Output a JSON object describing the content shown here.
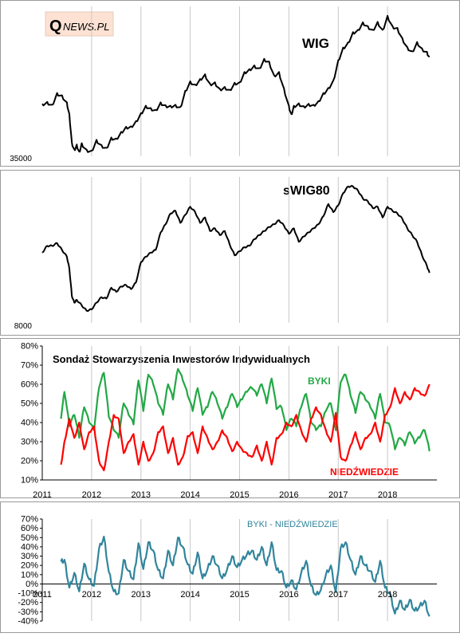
{
  "logo": {
    "text_q": "Q",
    "text_rest": "NEWS.PL"
  },
  "years": [
    "2011",
    "2012",
    "2013",
    "2014",
    "2015",
    "2016",
    "2017",
    "2018"
  ],
  "chart_data": [
    {
      "type": "line",
      "title": "WIG",
      "y_tick_labels": [
        "35000"
      ],
      "series": [
        {
          "color": "#000000",
          "x": [
            2011.0,
            2011.1,
            2011.2,
            2011.3,
            2011.4,
            2011.5,
            2011.55,
            2011.6,
            2011.65,
            2011.7,
            2011.75,
            2011.8,
            2011.9,
            2012.0,
            2012.1,
            2012.2,
            2012.3,
            2012.4,
            2012.5,
            2012.6,
            2012.7,
            2012.8,
            2012.9,
            2013.0,
            2013.1,
            2013.2,
            2013.3,
            2013.4,
            2013.5,
            2013.6,
            2013.7,
            2013.8,
            2013.9,
            2014.0,
            2014.1,
            2014.2,
            2014.3,
            2014.4,
            2014.5,
            2014.6,
            2014.7,
            2014.8,
            2014.9,
            2015.0,
            2015.1,
            2015.2,
            2015.3,
            2015.4,
            2015.5,
            2015.6,
            2015.7,
            2015.8,
            2015.9,
            2016.0,
            2016.05,
            2016.1,
            2016.2,
            2016.3,
            2016.4,
            2016.5,
            2016.6,
            2016.7,
            2016.8,
            2016.9,
            2017.0,
            2017.1,
            2017.2,
            2017.3,
            2017.4,
            2017.5,
            2017.6,
            2017.7,
            2017.8,
            2017.9,
            2018.0,
            2018.1,
            2018.2,
            2018.3,
            2018.4,
            2018.5,
            2018.6,
            2018.7,
            2018.8,
            2018.85
          ],
          "y": [
            45200,
            45600,
            45000,
            47500,
            47000,
            45500,
            43000,
            37000,
            35500,
            36500,
            35000,
            36800,
            35400,
            35200,
            37500,
            36400,
            35800,
            38000,
            37800,
            39200,
            40300,
            40400,
            41500,
            43200,
            44800,
            44300,
            43900,
            45500,
            44900,
            44800,
            45000,
            44500,
            48000,
            50000,
            49300,
            50500,
            51500,
            49500,
            49800,
            48400,
            48800,
            48200,
            49700,
            49800,
            52000,
            52600,
            53400,
            52800,
            54800,
            54200,
            51300,
            52000,
            48500,
            44800,
            43000,
            44800,
            45300,
            44700,
            45200,
            45000,
            45800,
            47500,
            48600,
            50200,
            54500,
            57200,
            58300,
            60500,
            61000,
            62600,
            61800,
            61000,
            62700,
            61000,
            64000,
            61800,
            61400,
            59200,
            57300,
            56400,
            58400,
            57000,
            56300,
            55200
          ]
        }
      ]
    },
    {
      "type": "line",
      "title": "sWIG80",
      "y_tick_labels": [
        "8000"
      ],
      "series": [
        {
          "color": "#000000",
          "x": [
            2011.0,
            2011.1,
            2011.2,
            2011.3,
            2011.4,
            2011.5,
            2011.55,
            2011.6,
            2011.65,
            2011.7,
            2011.8,
            2011.9,
            2012.0,
            2012.1,
            2012.2,
            2012.3,
            2012.4,
            2012.5,
            2012.6,
            2012.7,
            2012.8,
            2012.9,
            2013.0,
            2013.1,
            2013.2,
            2013.3,
            2013.4,
            2013.5,
            2013.6,
            2013.7,
            2013.8,
            2013.9,
            2014.0,
            2014.1,
            2014.2,
            2014.3,
            2014.4,
            2014.5,
            2014.6,
            2014.7,
            2014.8,
            2014.9,
            2015.0,
            2015.1,
            2015.2,
            2015.3,
            2015.4,
            2015.5,
            2015.6,
            2015.7,
            2015.8,
            2015.9,
            2016.0,
            2016.1,
            2016.2,
            2016.3,
            2016.4,
            2016.5,
            2016.6,
            2016.7,
            2016.8,
            2016.9,
            2017.0,
            2017.1,
            2017.2,
            2017.3,
            2017.4,
            2017.5,
            2017.6,
            2017.7,
            2017.8,
            2017.9,
            2018.0,
            2018.1,
            2018.2,
            2018.3,
            2018.4,
            2018.5,
            2018.6,
            2018.7,
            2018.8,
            2018.85
          ],
          "y": [
            13000,
            13500,
            13500,
            13700,
            13200,
            12700,
            11800,
            9800,
            9300,
            9500,
            9100,
            8700,
            8800,
            9300,
            9700,
            9600,
            10400,
            10100,
            10500,
            10600,
            10300,
            10800,
            12300,
            12700,
            13000,
            13200,
            14500,
            15100,
            15900,
            16100,
            15200,
            15800,
            16400,
            16000,
            15200,
            15600,
            14600,
            14800,
            14300,
            14600,
            13600,
            12800,
            13100,
            13400,
            13500,
            14000,
            14300,
            14600,
            14900,
            15100,
            15400,
            15000,
            14400,
            14800,
            13800,
            14200,
            14500,
            14800,
            15100,
            15700,
            16600,
            16000,
            16500,
            17400,
            17900,
            17900,
            17600,
            17000,
            16800,
            16300,
            16400,
            15600,
            16400,
            16100,
            15900,
            15500,
            14800,
            14300,
            13800,
            12800,
            12000,
            11500
          ]
        }
      ]
    },
    {
      "type": "line",
      "title": "Sondaż Stowarzyszenia Inwestorów Indywidualnych",
      "y_tick_labels": [
        "10%",
        "20%",
        "30%",
        "40%",
        "50%",
        "60%",
        "70%",
        "80%"
      ],
      "yticks": [
        10,
        20,
        30,
        40,
        50,
        60,
        70,
        80
      ],
      "ylim": [
        10,
        80
      ],
      "x_tick_labels": [
        "2011",
        "2012",
        "2013",
        "2014",
        "2015",
        "2016",
        "2017",
        "2018"
      ],
      "series": [
        {
          "name": "BYKI",
          "color": "#22A845",
          "x": [
            2011.38,
            2011.45,
            2011.55,
            2011.65,
            2011.75,
            2011.85,
            2011.95,
            2012.05,
            2012.15,
            2012.25,
            2012.35,
            2012.45,
            2012.55,
            2012.65,
            2012.75,
            2012.85,
            2012.95,
            2013.05,
            2013.15,
            2013.25,
            2013.35,
            2013.45,
            2013.55,
            2013.65,
            2013.75,
            2013.85,
            2013.95,
            2014.05,
            2014.15,
            2014.25,
            2014.35,
            2014.45,
            2014.55,
            2014.65,
            2014.75,
            2014.85,
            2014.95,
            2015.05,
            2015.15,
            2015.25,
            2015.35,
            2015.45,
            2015.55,
            2015.65,
            2015.75,
            2015.85,
            2015.95,
            2016.05,
            2016.15,
            2016.25,
            2016.35,
            2016.45,
            2016.55,
            2016.65,
            2016.75,
            2016.85,
            2016.95,
            2017.05,
            2017.15,
            2017.25,
            2017.35,
            2017.45,
            2017.55,
            2017.65,
            2017.75,
            2017.85,
            2017.95,
            2018.05,
            2018.15,
            2018.25,
            2018.35,
            2018.45,
            2018.55,
            2018.65,
            2018.75,
            2018.85
          ],
          "y": [
            42,
            56,
            38,
            44,
            32,
            48,
            40,
            36,
            58,
            66,
            43,
            36,
            32,
            50,
            44,
            39,
            62,
            46,
            65,
            60,
            50,
            44,
            60,
            52,
            68,
            62,
            54,
            46,
            58,
            44,
            48,
            56,
            50,
            42,
            48,
            55,
            48,
            52,
            56,
            58,
            54,
            60,
            50,
            63,
            47,
            48,
            36,
            42,
            38,
            48,
            55,
            40,
            36,
            38,
            46,
            50,
            36,
            61,
            65,
            54,
            45,
            56,
            52,
            48,
            42,
            55,
            40,
            38,
            26,
            32,
            28,
            35,
            29,
            32,
            36,
            25
          ]
        },
        {
          "name": "NIEDŹWIEDZIE",
          "color": "#FF0000",
          "x": [
            2011.38,
            2011.45,
            2011.55,
            2011.65,
            2011.75,
            2011.85,
            2011.95,
            2012.05,
            2012.15,
            2012.25,
            2012.35,
            2012.45,
            2012.55,
            2012.65,
            2012.75,
            2012.85,
            2012.95,
            2013.05,
            2013.15,
            2013.25,
            2013.35,
            2013.45,
            2013.55,
            2013.65,
            2013.75,
            2013.85,
            2013.95,
            2014.05,
            2014.15,
            2014.25,
            2014.35,
            2014.45,
            2014.55,
            2014.65,
            2014.75,
            2014.85,
            2014.95,
            2015.05,
            2015.15,
            2015.25,
            2015.35,
            2015.45,
            2015.55,
            2015.65,
            2015.75,
            2015.85,
            2015.95,
            2016.05,
            2016.15,
            2016.25,
            2016.35,
            2016.45,
            2016.55,
            2016.65,
            2016.75,
            2016.85,
            2016.95,
            2017.05,
            2017.15,
            2017.25,
            2017.35,
            2017.45,
            2017.55,
            2017.65,
            2017.75,
            2017.85,
            2017.95,
            2018.05,
            2018.15,
            2018.25,
            2018.35,
            2018.45,
            2018.55,
            2018.65,
            2018.75,
            2018.85
          ],
          "y": [
            18,
            30,
            42,
            32,
            40,
            26,
            35,
            38,
            20,
            15,
            30,
            44,
            42,
            24,
            30,
            34,
            18,
            30,
            20,
            24,
            35,
            38,
            24,
            32,
            18,
            22,
            33,
            35,
            24,
            38,
            32,
            26,
            30,
            36,
            32,
            25,
            30,
            26,
            24,
            22,
            28,
            20,
            30,
            18,
            32,
            34,
            40,
            38,
            44,
            36,
            30,
            42,
            48,
            44,
            36,
            30,
            45,
            22,
            20,
            28,
            35,
            26,
            32,
            34,
            40,
            30,
            44,
            48,
            58,
            50,
            56,
            52,
            58,
            56,
            54,
            60
          ]
        }
      ]
    },
    {
      "type": "line",
      "title": "BYKI - NIEDŹWIEDZIE",
      "y_tick_labels": [
        "-40%",
        "-30%",
        "-20%",
        "-10%",
        "0%",
        "10%",
        "20%",
        "30%",
        "40%",
        "50%",
        "60%",
        "70%"
      ],
      "yticks": [
        -40,
        -30,
        -20,
        -10,
        0,
        10,
        20,
        30,
        40,
        50,
        60,
        70
      ],
      "ylim": [
        -40,
        70
      ],
      "x_tick_labels": [
        "2011",
        "2012",
        "2013",
        "2014",
        "2015",
        "2016",
        "2017",
        "2018"
      ],
      "series": [
        {
          "name": "BYKI - NIEDŹWIEDZIE",
          "color": "#31859C",
          "x": [
            2011.38,
            2011.45,
            2011.55,
            2011.65,
            2011.75,
            2011.85,
            2011.95,
            2012.05,
            2012.15,
            2012.25,
            2012.35,
            2012.45,
            2012.55,
            2012.65,
            2012.75,
            2012.85,
            2012.95,
            2013.05,
            2013.15,
            2013.25,
            2013.35,
            2013.45,
            2013.55,
            2013.65,
            2013.75,
            2013.85,
            2013.95,
            2014.05,
            2014.15,
            2014.25,
            2014.35,
            2014.45,
            2014.55,
            2014.65,
            2014.75,
            2014.85,
            2014.95,
            2015.05,
            2015.15,
            2015.25,
            2015.35,
            2015.45,
            2015.55,
            2015.65,
            2015.75,
            2015.85,
            2015.95,
            2016.05,
            2016.15,
            2016.25,
            2016.35,
            2016.45,
            2016.55,
            2016.65,
            2016.75,
            2016.85,
            2016.95,
            2017.05,
            2017.15,
            2017.25,
            2017.35,
            2017.45,
            2017.55,
            2017.65,
            2017.75,
            2017.85,
            2017.95,
            2018.05,
            2018.15,
            2018.25,
            2018.35,
            2018.45,
            2018.55,
            2018.65,
            2018.75,
            2018.85
          ],
          "y": [
            24,
            26,
            -4,
            12,
            -8,
            22,
            5,
            -2,
            38,
            51,
            13,
            -8,
            -10,
            26,
            14,
            5,
            44,
            16,
            45,
            36,
            15,
            6,
            36,
            20,
            50,
            40,
            21,
            11,
            34,
            6,
            16,
            30,
            20,
            6,
            16,
            30,
            18,
            26,
            32,
            36,
            26,
            40,
            20,
            45,
            15,
            14,
            -4,
            4,
            -6,
            12,
            25,
            -2,
            -12,
            -6,
            10,
            20,
            -9,
            39,
            45,
            26,
            10,
            30,
            20,
            14,
            2,
            25,
            -4,
            -10,
            -32,
            -18,
            -28,
            -17,
            -29,
            -24,
            -18,
            -35
          ]
        }
      ]
    }
  ]
}
